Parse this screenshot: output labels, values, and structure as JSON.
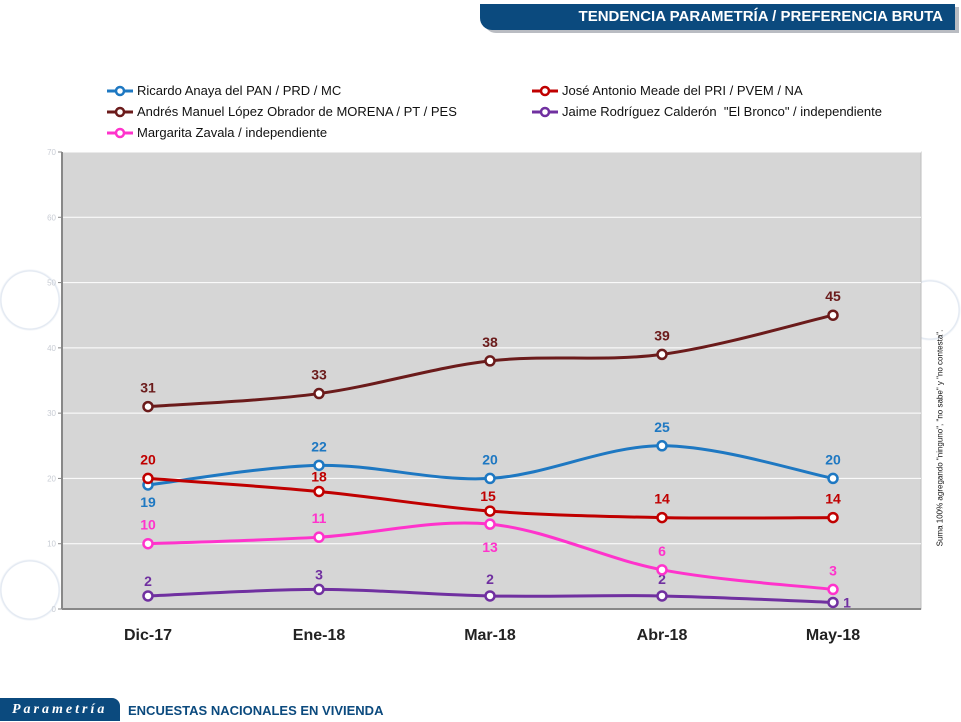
{
  "header": {
    "title": "TENDENCIA PARAMETRÍA / PREFERENCIA BRUTA"
  },
  "footer": {
    "logo": "Parametría",
    "subtitle": "ENCUESTAS NACIONALES EN VIVIENDA"
  },
  "side_note": "Suma 100% agregando \"ninguno\", \"no sabe\" y \"no contesta\".",
  "chart_data": {
    "type": "line",
    "categories": [
      "Dic-17",
      "Ene-18",
      "Mar-18",
      "Abr-18",
      "May-18"
    ],
    "ylim": [
      0,
      70
    ],
    "yticks": [
      "0",
      "10",
      "20",
      "30",
      "40",
      "50",
      "60",
      "70"
    ],
    "grid": true,
    "legend_position": "top",
    "series": [
      {
        "name": "Ricardo Anaya del PAN / PRD / MC",
        "color": "#1e78c2",
        "values": [
          19,
          22,
          20,
          25,
          20
        ]
      },
      {
        "name": "José Antonio Meade del PRI / PVEM / NA",
        "color": "#c00000",
        "values": [
          20,
          18,
          15,
          14,
          14
        ]
      },
      {
        "name": "Andrés Manuel López Obrador de MORENA / PT / PES",
        "color": "#6b1b1b",
        "values": [
          31,
          33,
          38,
          39,
          45
        ]
      },
      {
        "name": "Jaime Rodríguez Calderón  \"El Bronco\" / independiente",
        "color": "#7030a0",
        "values": [
          2,
          3,
          2,
          2,
          1
        ]
      },
      {
        "name": "Margarita Zavala / independiente",
        "color": "#ff33cc",
        "values": [
          10,
          11,
          13,
          6,
          3
        ]
      }
    ]
  }
}
